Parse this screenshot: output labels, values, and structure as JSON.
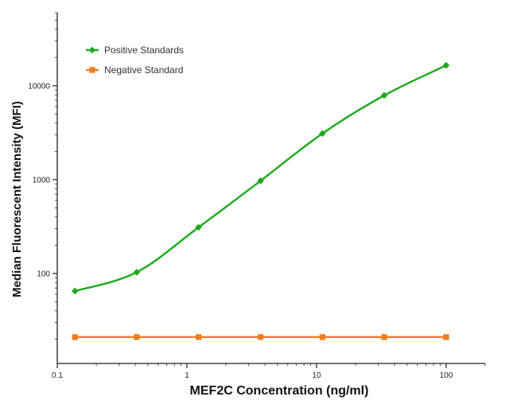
{
  "chart_data": {
    "type": "line",
    "xlabel": "MEF2C Concentration (ng/ml)",
    "ylabel": "Median Fluorescent Intensity (MFI)",
    "x_scale": "log",
    "y_scale": "log",
    "xlim": [
      0.1,
      200
    ],
    "ylim": [
      11,
      60000
    ],
    "x_ticks": [
      {
        "value": 0.1,
        "label": "0.1"
      },
      {
        "value": 1,
        "label": "1"
      },
      {
        "value": 10,
        "label": "10"
      },
      {
        "value": 100,
        "label": "100"
      }
    ],
    "y_ticks": [
      {
        "value": 100,
        "label": "100"
      },
      {
        "value": 1000,
        "label": "1000"
      },
      {
        "value": 10000,
        "label": "10000"
      }
    ],
    "grid": false,
    "legend_position": "top-left",
    "series": [
      {
        "name": "Positive Standards",
        "color": "#1aaa1a",
        "marker": "diamond",
        "smooth": true,
        "x": [
          0.137,
          0.41,
          1.23,
          3.7,
          11.1,
          33.3,
          100
        ],
        "values": [
          65,
          103,
          310,
          970,
          3100,
          7900,
          16500
        ]
      },
      {
        "name": "Negative Standard",
        "color": "#f07d1e",
        "marker": "square",
        "smooth": false,
        "x": [
          0.137,
          0.41,
          1.23,
          3.7,
          11.1,
          33.3,
          100
        ],
        "values": [
          21,
          21,
          21,
          21,
          21,
          21,
          21
        ]
      }
    ]
  }
}
